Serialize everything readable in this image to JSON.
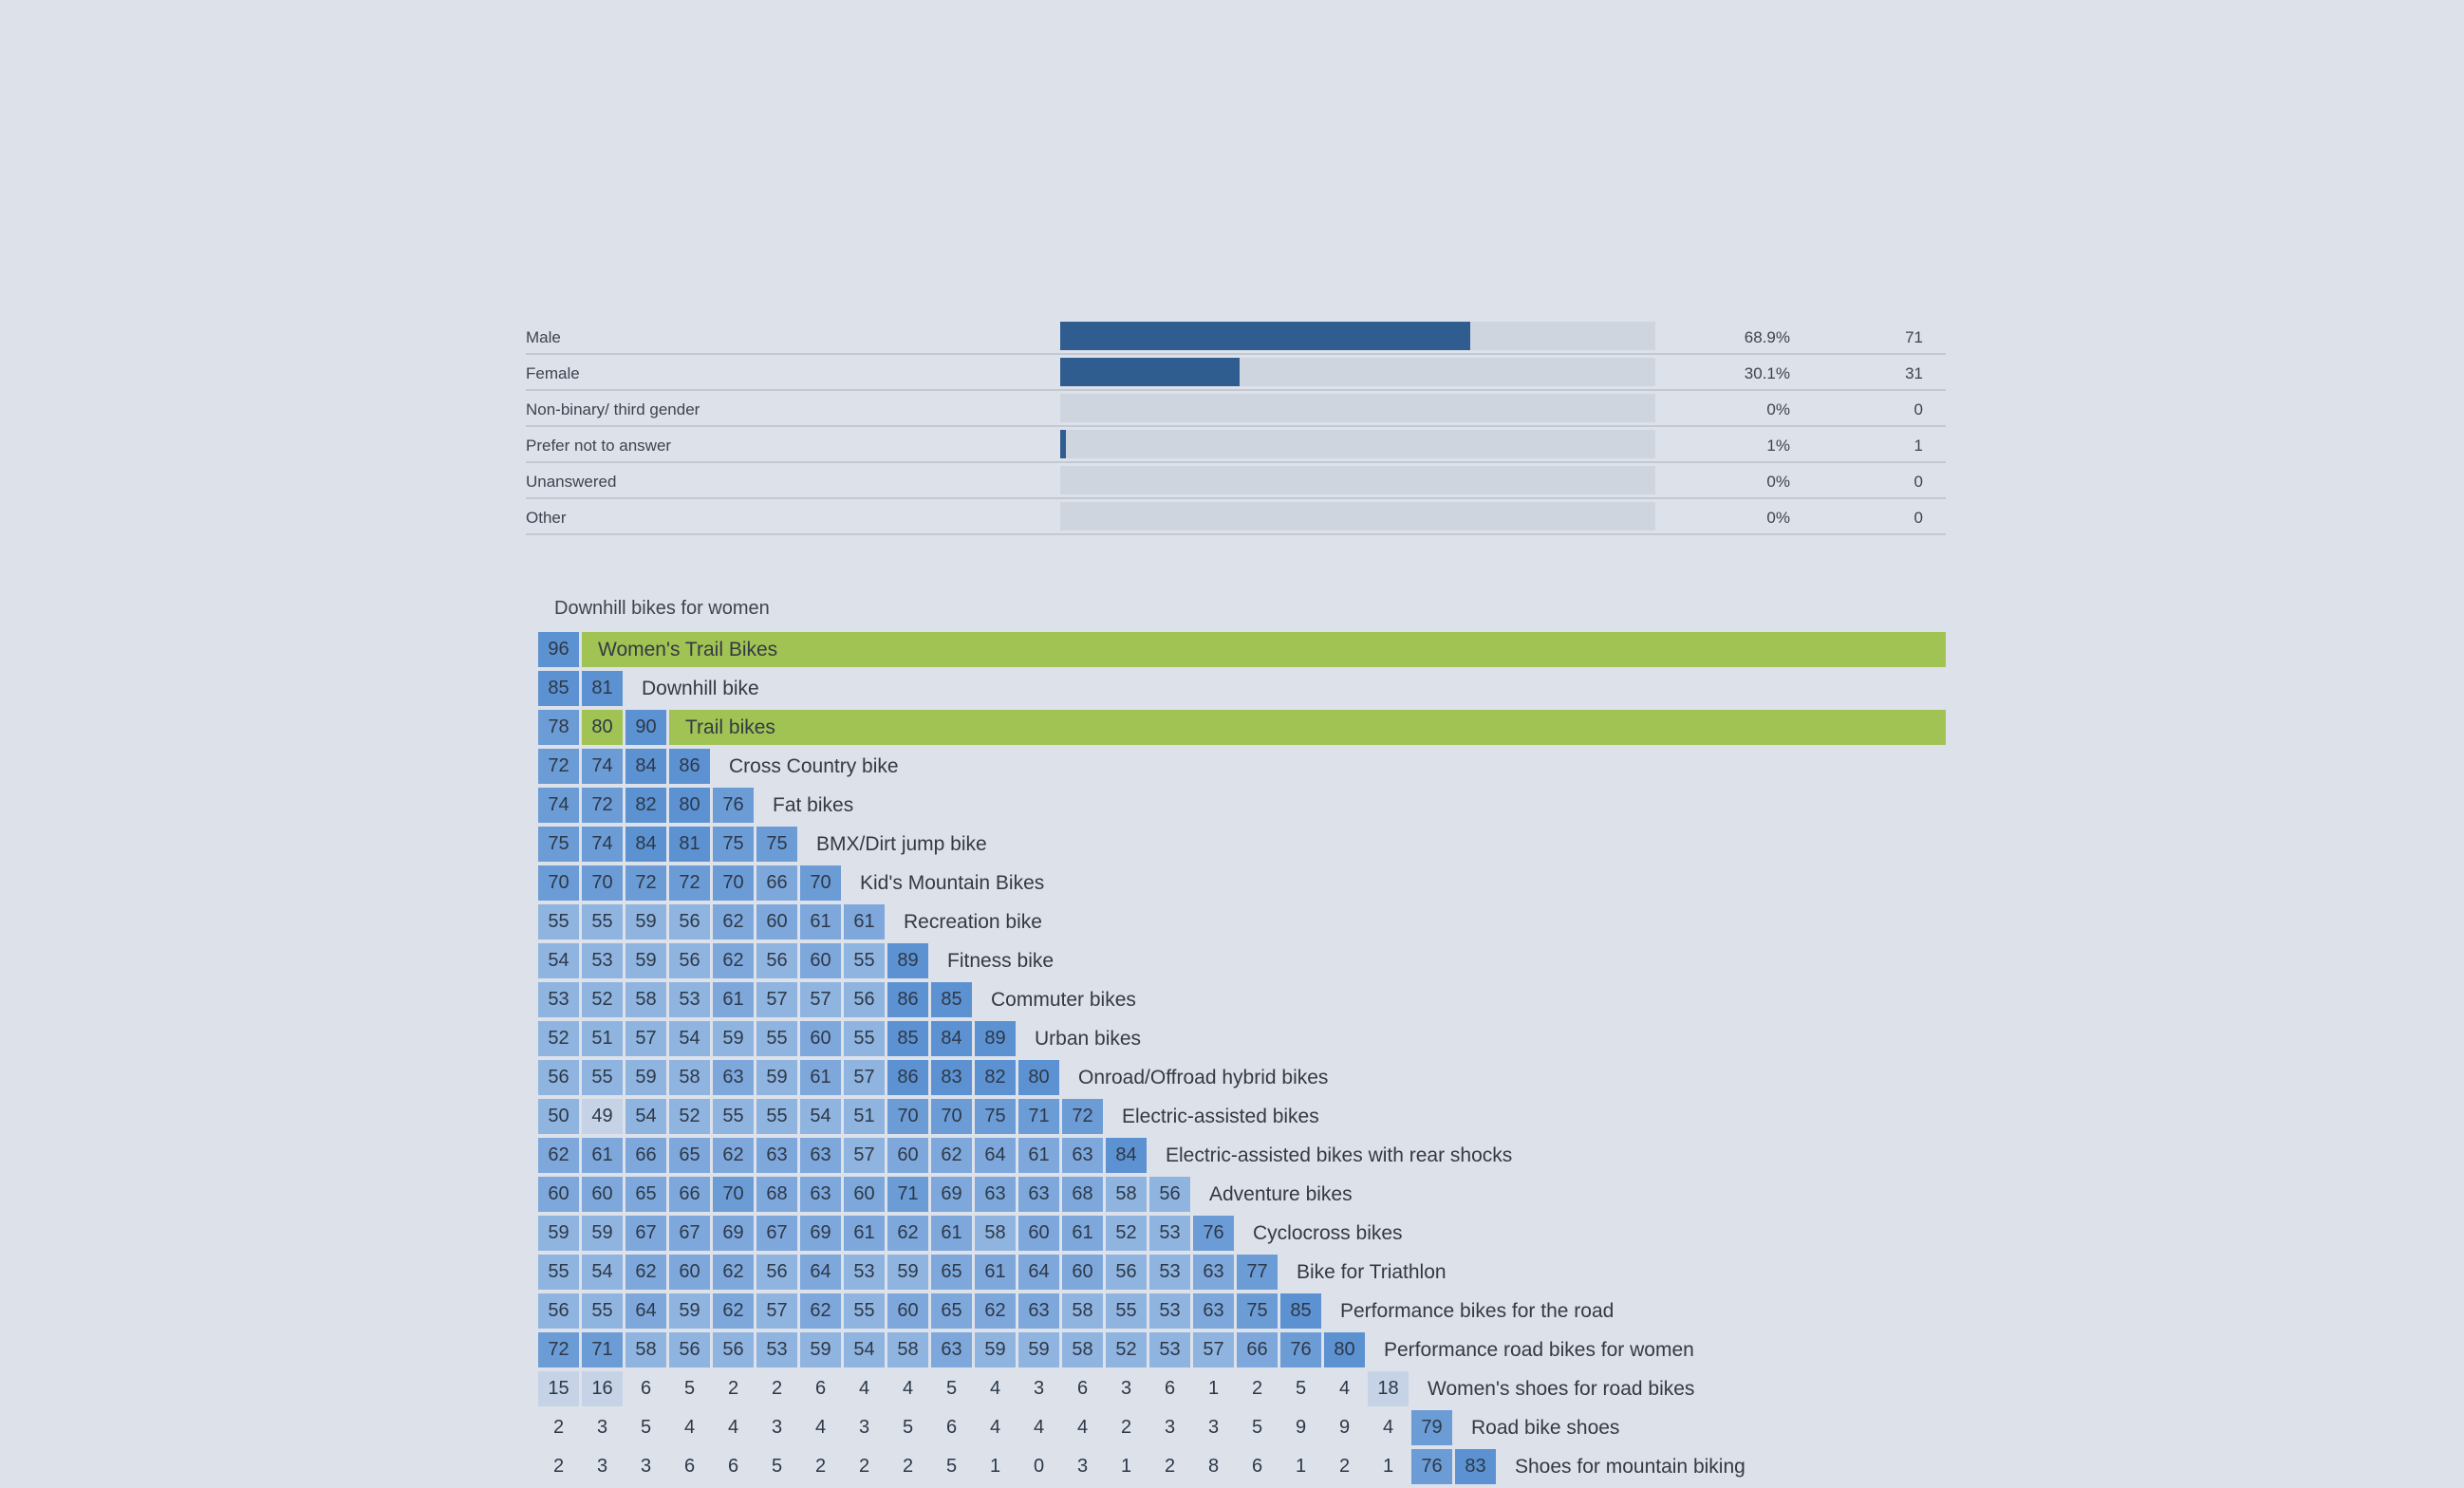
{
  "gender": {
    "rows": [
      {
        "label": "Male",
        "pct": "68.9%",
        "count": "71",
        "fraction": 0.689
      },
      {
        "label": "Female",
        "pct": "30.1%",
        "count": "31",
        "fraction": 0.301
      },
      {
        "label": "Non-binary/ third gender",
        "pct": "0%",
        "count": "0",
        "fraction": 0
      },
      {
        "label": "Prefer not to answer",
        "pct": "1%",
        "count": "1",
        "fraction": 0.01
      },
      {
        "label": "Unanswered",
        "pct": "0%",
        "count": "0",
        "fraction": 0
      },
      {
        "label": "Other",
        "pct": "0%",
        "count": "0",
        "fraction": 0
      }
    ],
    "bar_color": "#2f5d8f",
    "track_color": "#cfd5de"
  },
  "matrix": {
    "title": "Downhill bikes for women",
    "highlight_color": "#a1c353",
    "rows": [
      {
        "label": "Women's Trail Bikes",
        "highlight": true,
        "values": [
          96
        ]
      },
      {
        "label": "Downhill bike",
        "highlight": false,
        "values": [
          85,
          81
        ]
      },
      {
        "label": "Trail bikes",
        "highlight": true,
        "values": [
          78,
          80,
          90
        ]
      },
      {
        "label": "Cross Country bike",
        "highlight": false,
        "values": [
          72,
          74,
          84,
          86
        ]
      },
      {
        "label": "Fat bikes",
        "highlight": false,
        "values": [
          74,
          72,
          82,
          80,
          76
        ]
      },
      {
        "label": "BMX/Dirt jump bike",
        "highlight": false,
        "values": [
          75,
          74,
          84,
          81,
          75,
          75
        ]
      },
      {
        "label": "Kid's Mountain Bikes",
        "highlight": false,
        "values": [
          70,
          70,
          72,
          72,
          70,
          66,
          70
        ]
      },
      {
        "label": "Recreation bike",
        "highlight": false,
        "values": [
          55,
          55,
          59,
          56,
          62,
          60,
          61,
          61
        ]
      },
      {
        "label": "Fitness bike",
        "highlight": false,
        "values": [
          54,
          53,
          59,
          56,
          62,
          56,
          60,
          55,
          89
        ]
      },
      {
        "label": "Commuter bikes",
        "highlight": false,
        "values": [
          53,
          52,
          58,
          53,
          61,
          57,
          57,
          56,
          86,
          85
        ]
      },
      {
        "label": "Urban bikes",
        "highlight": false,
        "values": [
          52,
          51,
          57,
          54,
          59,
          55,
          60,
          55,
          85,
          84,
          89
        ]
      },
      {
        "label": "Onroad/Offroad hybrid bikes",
        "highlight": false,
        "values": [
          56,
          55,
          59,
          58,
          63,
          59,
          61,
          57,
          86,
          83,
          82,
          80
        ]
      },
      {
        "label": "Electric-assisted bikes",
        "highlight": false,
        "values": [
          50,
          49,
          54,
          52,
          55,
          55,
          54,
          51,
          70,
          70,
          75,
          71,
          72
        ]
      },
      {
        "label": "Electric-assisted bikes with rear shocks",
        "highlight": false,
        "values": [
          62,
          61,
          66,
          65,
          62,
          63,
          63,
          57,
          60,
          62,
          64,
          61,
          63,
          84
        ]
      },
      {
        "label": "Adventure bikes",
        "highlight": false,
        "values": [
          60,
          60,
          65,
          66,
          70,
          68,
          63,
          60,
          71,
          69,
          63,
          63,
          68,
          58,
          56
        ]
      },
      {
        "label": "Cyclocross bikes",
        "highlight": false,
        "values": [
          59,
          59,
          67,
          67,
          69,
          67,
          69,
          61,
          62,
          61,
          58,
          60,
          61,
          52,
          53,
          76
        ]
      },
      {
        "label": "Bike for Triathlon",
        "highlight": false,
        "values": [
          55,
          54,
          62,
          60,
          62,
          56,
          64,
          53,
          59,
          65,
          61,
          64,
          60,
          56,
          53,
          63,
          77
        ]
      },
      {
        "label": "Performance bikes for the road",
        "highlight": false,
        "values": [
          56,
          55,
          64,
          59,
          62,
          57,
          62,
          55,
          60,
          65,
          62,
          63,
          58,
          55,
          53,
          63,
          75,
          85
        ]
      },
      {
        "label": "Performance road bikes for women",
        "highlight": false,
        "values": [
          72,
          71,
          58,
          56,
          56,
          53,
          59,
          54,
          58,
          63,
          59,
          59,
          58,
          52,
          53,
          57,
          66,
          76,
          80
        ]
      },
      {
        "label": "Women's shoes for road bikes",
        "highlight": false,
        "values": [
          15,
          16,
          6,
          5,
          2,
          2,
          6,
          4,
          4,
          5,
          4,
          3,
          6,
          3,
          6,
          1,
          2,
          5,
          4,
          18
        ]
      },
      {
        "label": "Road bike shoes",
        "highlight": false,
        "values": [
          2,
          3,
          5,
          4,
          4,
          3,
          4,
          3,
          5,
          6,
          4,
          4,
          4,
          2,
          3,
          3,
          5,
          9,
          9,
          4,
          79
        ]
      },
      {
        "label": "Shoes for mountain biking",
        "highlight": false,
        "values": [
          2,
          3,
          3,
          6,
          6,
          5,
          2,
          2,
          2,
          5,
          1,
          0,
          3,
          1,
          2,
          8,
          6,
          1,
          2,
          1,
          76,
          83
        ]
      }
    ]
  }
}
